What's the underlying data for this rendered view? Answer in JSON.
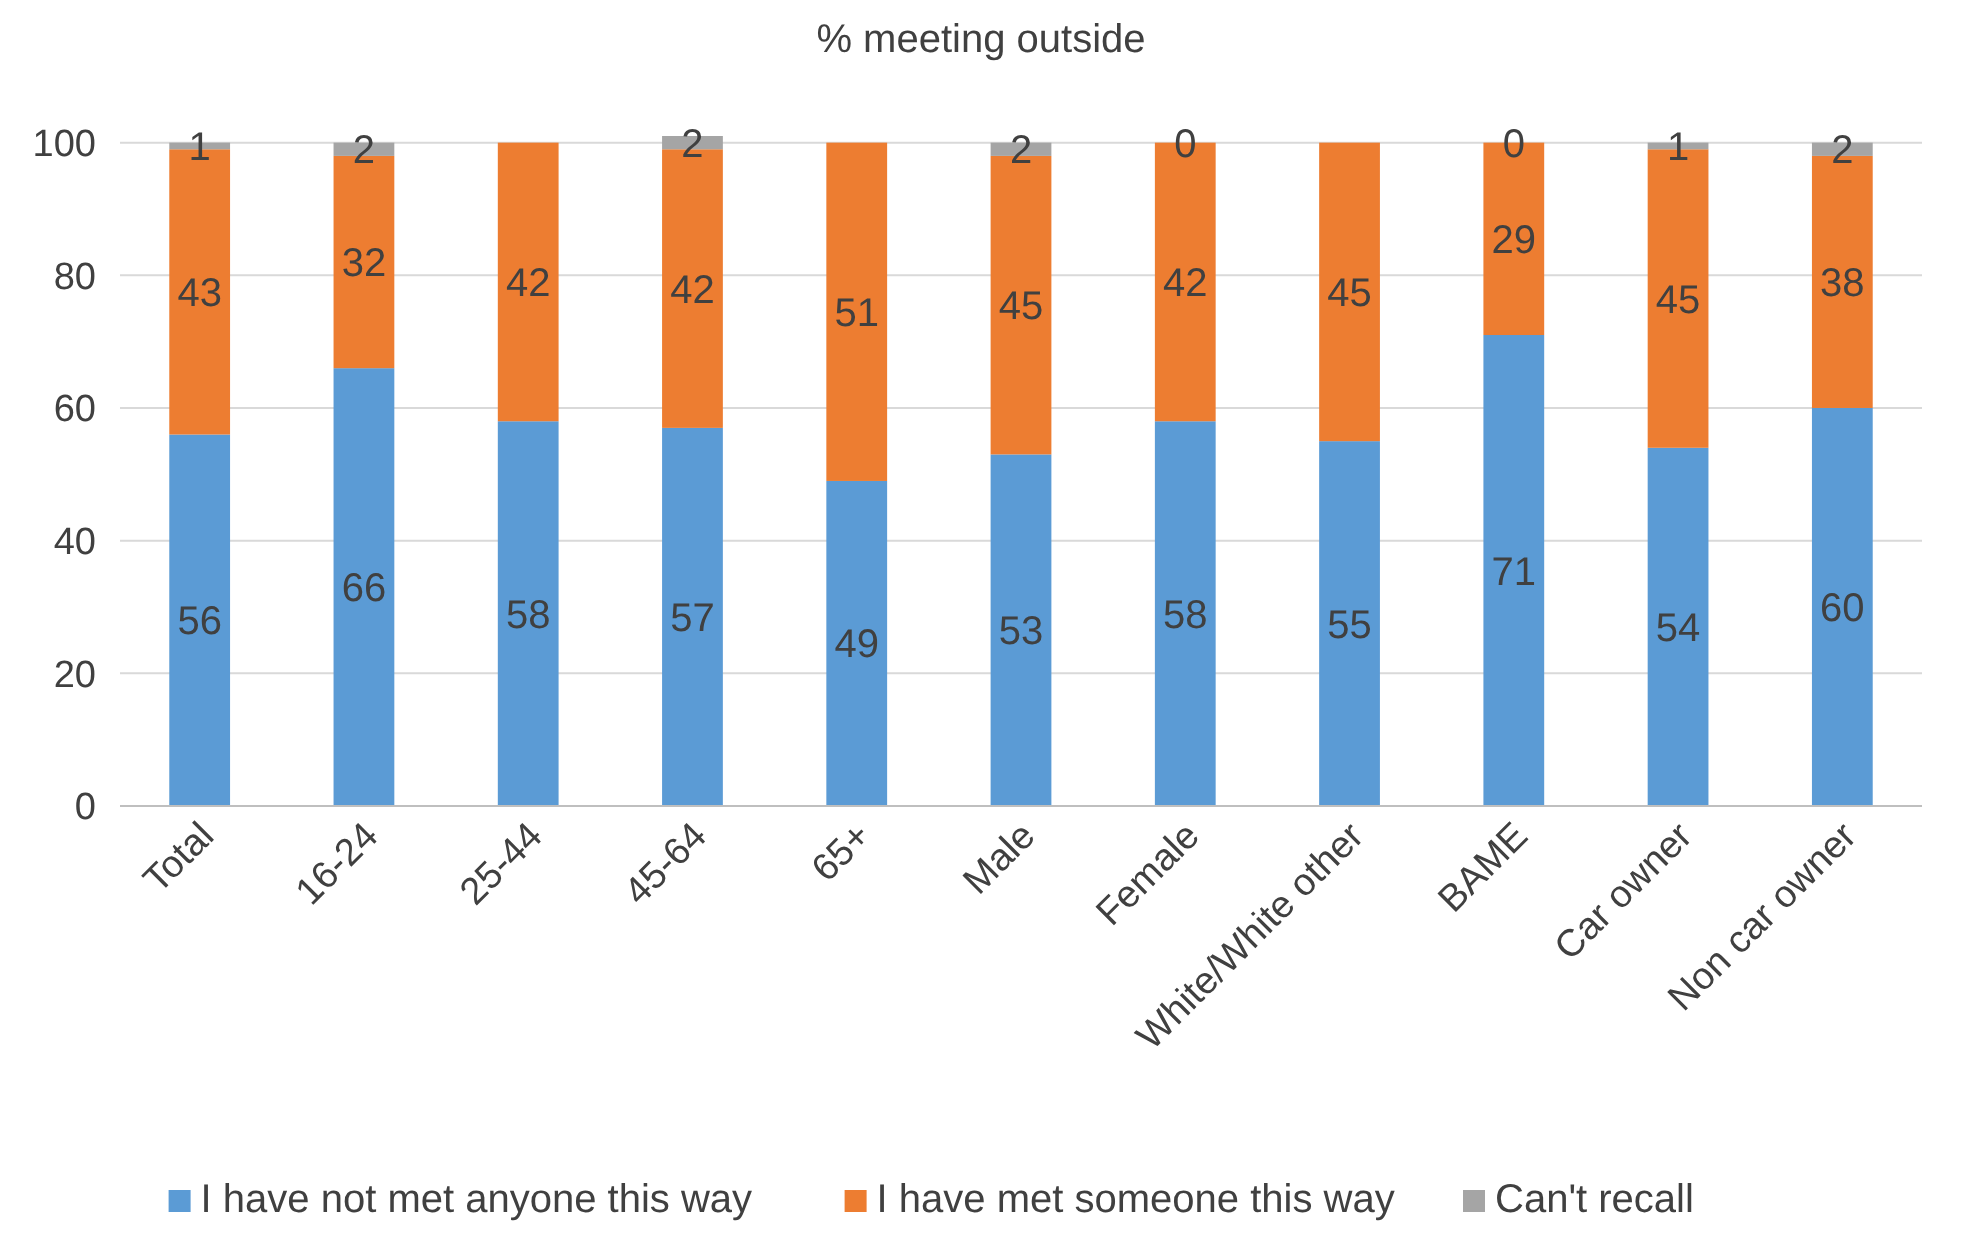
{
  "chart_data": {
    "type": "bar",
    "title": "% meeting outside",
    "stacked": true,
    "categories": [
      "Total",
      "16-24",
      "25-44",
      "45-64",
      "65+",
      "Male",
      "Female",
      "White/White other",
      "BAME",
      "Car owner",
      "Non car owner"
    ],
    "series": [
      {
        "name": "I have not met anyone this way",
        "color": "#5b9bd5",
        "values": [
          56,
          66,
          58,
          57,
          49,
          53,
          58,
          55,
          71,
          54,
          60
        ]
      },
      {
        "name": "I have met someone this way",
        "color": "#ed7d31",
        "values": [
          43,
          32,
          42,
          42,
          51,
          45,
          42,
          45,
          29,
          45,
          38
        ]
      },
      {
        "name": "Can't recall",
        "color": "#a5a5a5",
        "values": [
          1,
          2,
          0,
          2,
          0,
          2,
          0,
          0,
          0,
          1,
          2
        ],
        "value_labels": [
          "1",
          "2",
          null,
          "2",
          null,
          "2",
          "0",
          null,
          "0",
          "1",
          "2"
        ]
      }
    ],
    "ylim": [
      0,
      101
    ],
    "yticks": [
      0,
      20,
      40,
      60,
      80,
      100
    ],
    "grid": "y",
    "legend": "bottom",
    "data_labels": true
  }
}
